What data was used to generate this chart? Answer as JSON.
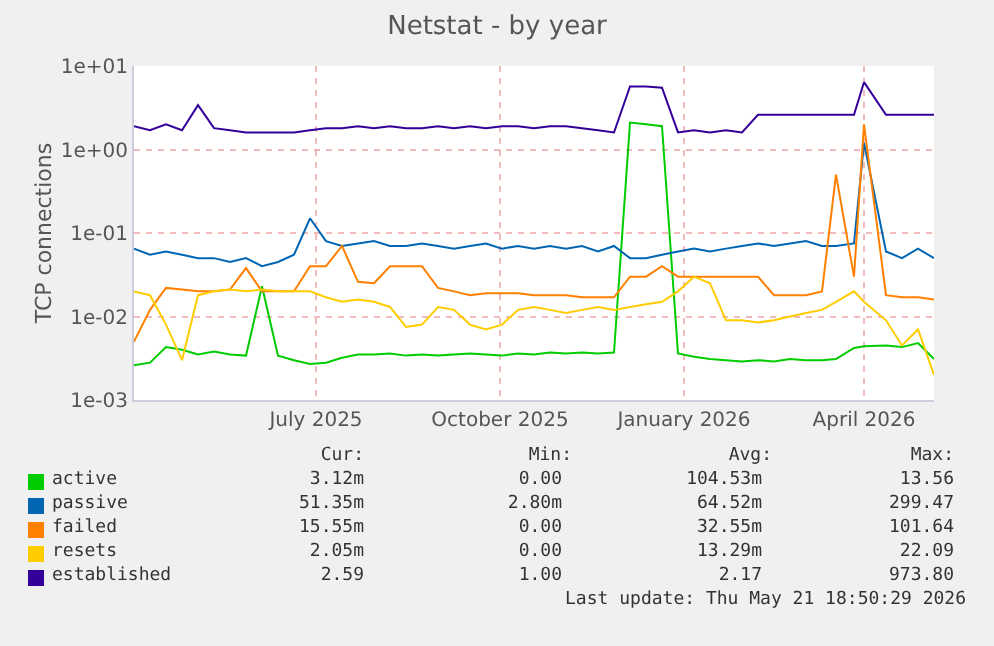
{
  "chart_data": {
    "type": "line",
    "title": "Netstat - by year",
    "ylabel": "TCP connections",
    "log": true,
    "grid": true,
    "legend": "bottom",
    "line_style": "solid",
    "marker": "none",
    "xlim": [
      "2025-04-16",
      "2026-05-21"
    ],
    "xticks": [
      {
        "value": "2025-07-16",
        "label": "July 2025"
      },
      {
        "value": "2025-10-16",
        "label": "October 2025"
      },
      {
        "value": "2026-01-16",
        "label": "January 2026"
      },
      {
        "value": "2026-04-16",
        "label": "April 2026"
      }
    ],
    "ylim": [
      0.001,
      10
    ],
    "yticks": [
      {
        "value": 0.001,
        "label": "1e-03"
      },
      {
        "value": 0.01,
        "label": "1e-02"
      },
      {
        "value": 0.1,
        "label": "1e-01"
      },
      {
        "value": 1,
        "label": "1e+00"
      },
      {
        "value": 10,
        "label": "1e+01"
      }
    ],
    "x": [
      "2025-04-16",
      "2025-04-24",
      "2025-05-02",
      "2025-05-10",
      "2025-05-18",
      "2025-05-26",
      "2025-06-03",
      "2025-06-11",
      "2025-06-19",
      "2025-06-27",
      "2025-07-05",
      "2025-07-13",
      "2025-07-21",
      "2025-07-29",
      "2025-08-06",
      "2025-08-14",
      "2025-08-22",
      "2025-08-30",
      "2025-09-07",
      "2025-09-15",
      "2025-09-23",
      "2025-10-01",
      "2025-10-09",
      "2025-10-17",
      "2025-10-25",
      "2025-11-02",
      "2025-11-10",
      "2025-11-18",
      "2025-11-26",
      "2025-12-04",
      "2025-12-12",
      "2025-12-20",
      "2025-12-28",
      "2026-01-05",
      "2026-01-13",
      "2026-01-21",
      "2026-01-29",
      "2026-02-06",
      "2026-02-14",
      "2026-02-22",
      "2026-03-02",
      "2026-03-10",
      "2026-03-18",
      "2026-03-26",
      "2026-04-02",
      "2026-04-11",
      "2026-04-16",
      "2026-04-27",
      "2026-05-05",
      "2026-05-13",
      "2026-05-21"
    ],
    "series": [
      {
        "name": "active",
        "color": "#00cc00",
        "values": [
          0.0026,
          0.0028,
          0.0043,
          0.004,
          0.0035,
          0.0038,
          0.0035,
          0.0034,
          0.023,
          0.0034,
          0.003,
          0.0027,
          0.0028,
          0.0032,
          0.0035,
          0.0035,
          0.0036,
          0.0034,
          0.0035,
          0.0034,
          0.0035,
          0.0036,
          0.0035,
          0.0034,
          0.0036,
          0.0035,
          0.0037,
          0.0036,
          0.0037,
          0.0036,
          0.0037,
          2.1,
          2.0,
          1.9,
          0.0036,
          0.0033,
          0.0031,
          0.003,
          0.0029,
          0.003,
          0.0029,
          0.0031,
          0.003,
          0.003,
          0.0031,
          0.0042,
          0.0044,
          0.0045,
          0.0043,
          0.0048,
          0.0031
        ]
      },
      {
        "name": "passive",
        "color": "#0066b3",
        "values": [
          0.065,
          0.055,
          0.06,
          0.055,
          0.05,
          0.05,
          0.045,
          0.05,
          0.04,
          0.045,
          0.055,
          0.15,
          0.08,
          0.07,
          0.075,
          0.08,
          0.07,
          0.07,
          0.075,
          0.07,
          0.065,
          0.07,
          0.075,
          0.065,
          0.07,
          0.065,
          0.07,
          0.065,
          0.07,
          0.06,
          0.07,
          0.05,
          0.05,
          0.055,
          0.06,
          0.065,
          0.06,
          0.065,
          0.07,
          0.075,
          0.07,
          0.075,
          0.08,
          0.07,
          0.07,
          0.075,
          1.2,
          0.06,
          0.05,
          0.065,
          0.05
        ]
      },
      {
        "name": "failed",
        "color": "#ff8000",
        "values": [
          0.005,
          0.012,
          0.022,
          0.021,
          0.02,
          0.02,
          0.021,
          0.038,
          0.02,
          0.02,
          0.02,
          0.04,
          0.04,
          0.07,
          0.026,
          0.025,
          0.04,
          0.04,
          0.04,
          0.022,
          0.02,
          0.018,
          0.019,
          0.019,
          0.019,
          0.018,
          0.018,
          0.018,
          0.017,
          0.017,
          0.017,
          0.03,
          0.03,
          0.04,
          0.03,
          0.03,
          0.03,
          0.03,
          0.03,
          0.03,
          0.018,
          0.018,
          0.018,
          0.02,
          0.5,
          0.03,
          2.0,
          0.018,
          0.017,
          0.017,
          0.016
        ]
      },
      {
        "name": "resets",
        "color": "#ffcc00",
        "values": [
          0.02,
          0.018,
          0.008,
          0.003,
          0.018,
          0.02,
          0.021,
          0.02,
          0.021,
          0.02,
          0.02,
          0.02,
          0.017,
          0.015,
          0.016,
          0.015,
          0.013,
          0.0075,
          0.008,
          0.013,
          0.012,
          0.008,
          0.007,
          0.008,
          0.012,
          0.013,
          0.012,
          0.011,
          0.012,
          0.013,
          0.012,
          0.013,
          0.014,
          0.015,
          0.02,
          0.03,
          0.025,
          0.009,
          0.009,
          0.0085,
          0.009,
          0.01,
          0.011,
          0.012,
          0.015,
          0.02,
          0.015,
          0.009,
          0.0045,
          0.007,
          0.002
        ]
      },
      {
        "name": "established",
        "color": "#330099",
        "values": [
          1.9,
          1.7,
          2.0,
          1.7,
          3.4,
          1.8,
          1.7,
          1.6,
          1.6,
          1.6,
          1.6,
          1.7,
          1.8,
          1.8,
          1.9,
          1.8,
          1.9,
          1.8,
          1.8,
          1.9,
          1.8,
          1.9,
          1.8,
          1.9,
          1.9,
          1.8,
          1.9,
          1.9,
          1.8,
          1.7,
          1.6,
          5.7,
          5.7,
          5.5,
          1.6,
          1.7,
          1.6,
          1.7,
          1.6,
          2.6,
          2.6,
          2.6,
          2.6,
          2.6,
          2.6,
          2.6,
          6.4,
          2.6,
          2.6,
          2.6,
          2.6
        ]
      }
    ],
    "annotations": [
      "Cur:",
      "Min:",
      "Avg:",
      "Max:",
      "3.12m",
      "0.00",
      "104.53m",
      "13.56",
      "51.35m",
      "2.80m",
      "64.52m",
      "299.47",
      "15.55m",
      "0.00",
      "32.55m",
      "101.64",
      "2.05m",
      "0.00",
      "13.29m",
      "22.09",
      "2.59",
      "1.00",
      "2.17",
      "973.80",
      "Last update: Thu May 21 18:50:29 2026"
    ]
  }
}
